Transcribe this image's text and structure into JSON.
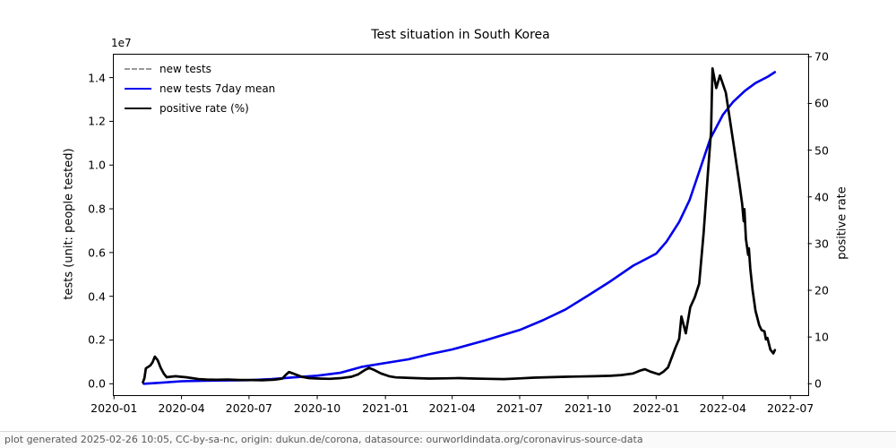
{
  "footer": {
    "text": "plot generated 2025-02-26 10:05, CC-by-sa-nc, origin: dukun.de/corona, datasource: ourworldindata.org/coronavirus-source-data"
  },
  "legend": {
    "items": [
      {
        "label": "new tests",
        "style": "dashed",
        "color": "#999999"
      },
      {
        "label": "new tests 7day mean",
        "style": "solid",
        "color": "#0000ee"
      },
      {
        "label": "positive rate (%)",
        "style": "solid",
        "color": "#000000"
      }
    ]
  },
  "chart_data": {
    "type": "line",
    "title": "Test situation in South Korea",
    "xlabel": "",
    "x_axis": {
      "tick_labels": [
        "2020-01",
        "2020-04",
        "2020-07",
        "2020-10",
        "2021-01",
        "2021-04",
        "2021-07",
        "2021-10",
        "2022-01",
        "2022-04",
        "2022-07"
      ],
      "lim": [
        "2019-12-30",
        "2022-07-25"
      ]
    },
    "left_axis": {
      "label": "tests (unit: people tested)",
      "offset_label": "1e7",
      "tick_labels": [
        "0.0",
        "0.2",
        "0.4",
        "0.6",
        "0.8",
        "1.0",
        "1.2",
        "1.4"
      ],
      "tick_values": [
        0,
        2000000,
        4000000,
        6000000,
        8000000,
        10000000,
        12000000,
        14000000
      ],
      "lim": [
        -520000,
        15090000
      ]
    },
    "right_axis": {
      "label": "positive rate",
      "tick_labels": [
        "0",
        "10",
        "20",
        "30",
        "40",
        "50",
        "60",
        "70"
      ],
      "tick_values": [
        0,
        10,
        20,
        30,
        40,
        50,
        60,
        70
      ],
      "lim": [
        -2.44,
        70.64
      ]
    },
    "series": [
      {
        "name": "new tests",
        "axis": "left",
        "color": "#999999",
        "dashed": true,
        "width": 2.2,
        "same_as": "new tests 7day mean"
      },
      {
        "name": "new tests 7day mean",
        "axis": "left",
        "color": "#0000ee",
        "dashed": false,
        "width": 2.6,
        "points": [
          [
            "2020-02-10",
            0
          ],
          [
            "2020-03-01",
            40000
          ],
          [
            "2020-04-01",
            115000
          ],
          [
            "2020-05-01",
            135000
          ],
          [
            "2020-06-01",
            150000
          ],
          [
            "2020-07-01",
            165000
          ],
          [
            "2020-08-01",
            215000
          ],
          [
            "2020-09-01",
            295000
          ],
          [
            "2020-10-01",
            370000
          ],
          [
            "2020-11-01",
            500000
          ],
          [
            "2020-12-01",
            780000
          ],
          [
            "2021-01-01",
            950000
          ],
          [
            "2021-02-01",
            1120000
          ],
          [
            "2021-03-01",
            1350000
          ],
          [
            "2021-04-01",
            1570000
          ],
          [
            "2021-05-15",
            1980000
          ],
          [
            "2021-07-01",
            2460000
          ],
          [
            "2021-08-01",
            2900000
          ],
          [
            "2021-09-01",
            3400000
          ],
          [
            "2021-10-01",
            4030000
          ],
          [
            "2021-11-01",
            4700000
          ],
          [
            "2021-12-01",
            5400000
          ],
          [
            "2022-01-01",
            5950000
          ],
          [
            "2022-01-15",
            6500000
          ],
          [
            "2022-02-01",
            7400000
          ],
          [
            "2022-02-15",
            8400000
          ],
          [
            "2022-03-01",
            9800000
          ],
          [
            "2022-03-15",
            11200000
          ],
          [
            "2022-04-01",
            12300000
          ],
          [
            "2022-04-15",
            12900000
          ],
          [
            "2022-05-01",
            13400000
          ],
          [
            "2022-05-15",
            13750000
          ],
          [
            "2022-06-01",
            14050000
          ],
          [
            "2022-06-10",
            14250000
          ]
        ]
      },
      {
        "name": "positive rate (%)",
        "axis": "right",
        "color": "#000000",
        "dashed": false,
        "width": 2.7,
        "points": [
          [
            "2020-02-09",
            0.3
          ],
          [
            "2020-02-11",
            1.2
          ],
          [
            "2020-02-13",
            3.3
          ],
          [
            "2020-02-16",
            3.6
          ],
          [
            "2020-02-19",
            3.9
          ],
          [
            "2020-02-22",
            4.6
          ],
          [
            "2020-02-25",
            5.8
          ],
          [
            "2020-02-29",
            5.0
          ],
          [
            "2020-03-04",
            3.4
          ],
          [
            "2020-03-08",
            2.2
          ],
          [
            "2020-03-12",
            1.4
          ],
          [
            "2020-03-17",
            1.5
          ],
          [
            "2020-03-24",
            1.6
          ],
          [
            "2020-03-31",
            1.5
          ],
          [
            "2020-04-07",
            1.4
          ],
          [
            "2020-04-15",
            1.2
          ],
          [
            "2020-04-24",
            1.0
          ],
          [
            "2020-05-05",
            0.9
          ],
          [
            "2020-05-18",
            0.85
          ],
          [
            "2020-06-03",
            0.9
          ],
          [
            "2020-06-18",
            0.8
          ],
          [
            "2020-07-03",
            0.8
          ],
          [
            "2020-07-19",
            0.75
          ],
          [
            "2020-08-04",
            0.85
          ],
          [
            "2020-08-15",
            1.1
          ],
          [
            "2020-08-19",
            1.8
          ],
          [
            "2020-08-24",
            2.5
          ],
          [
            "2020-09-01",
            2.05
          ],
          [
            "2020-09-10",
            1.5
          ],
          [
            "2020-09-20",
            1.2
          ],
          [
            "2020-10-03",
            1.1
          ],
          [
            "2020-10-18",
            1.05
          ],
          [
            "2020-11-02",
            1.2
          ],
          [
            "2020-11-16",
            1.5
          ],
          [
            "2020-11-25",
            2.0
          ],
          [
            "2020-12-05",
            3.0
          ],
          [
            "2020-12-10",
            3.4
          ],
          [
            "2020-12-16",
            3.0
          ],
          [
            "2020-12-26",
            2.2
          ],
          [
            "2021-01-06",
            1.6
          ],
          [
            "2021-01-15",
            1.35
          ],
          [
            "2021-01-25",
            1.3
          ],
          [
            "2021-02-10",
            1.2
          ],
          [
            "2021-03-01",
            1.1
          ],
          [
            "2021-03-20",
            1.15
          ],
          [
            "2021-04-10",
            1.2
          ],
          [
            "2021-05-01",
            1.1
          ],
          [
            "2021-05-20",
            1.05
          ],
          [
            "2021-06-10",
            1.0
          ],
          [
            "2021-07-01",
            1.15
          ],
          [
            "2021-07-20",
            1.3
          ],
          [
            "2021-08-10",
            1.4
          ],
          [
            "2021-09-01",
            1.5
          ],
          [
            "2021-09-20",
            1.55
          ],
          [
            "2021-10-10",
            1.6
          ],
          [
            "2021-11-01",
            1.7
          ],
          [
            "2021-11-15",
            1.85
          ],
          [
            "2021-12-01",
            2.2
          ],
          [
            "2021-12-10",
            2.8
          ],
          [
            "2021-12-17",
            3.1
          ],
          [
            "2021-12-24",
            2.6
          ],
          [
            "2022-01-05",
            2.0
          ],
          [
            "2022-01-11",
            2.6
          ],
          [
            "2022-01-17",
            3.5
          ],
          [
            "2022-01-27",
            7.7
          ],
          [
            "2022-02-01",
            9.6
          ],
          [
            "2022-02-04",
            14.4
          ],
          [
            "2022-02-10",
            10.8
          ],
          [
            "2022-02-16",
            16.4
          ],
          [
            "2022-02-22",
            18.5
          ],
          [
            "2022-02-28",
            21.4
          ],
          [
            "2022-03-06",
            32.3
          ],
          [
            "2022-03-12",
            45.7
          ],
          [
            "2022-03-16",
            54.0
          ],
          [
            "2022-03-17",
            61.0
          ],
          [
            "2022-03-18",
            67.5
          ],
          [
            "2022-03-23",
            63.3
          ],
          [
            "2022-03-28",
            66.0
          ],
          [
            "2022-04-05",
            62.3
          ],
          [
            "2022-04-11",
            55.9
          ],
          [
            "2022-04-17",
            49.5
          ],
          [
            "2022-04-23",
            43.1
          ],
          [
            "2022-04-27",
            38.5
          ],
          [
            "2022-04-29",
            34.8
          ],
          [
            "2022-04-30",
            37.4
          ],
          [
            "2022-05-02",
            31.0
          ],
          [
            "2022-05-05",
            27.6
          ],
          [
            "2022-05-06",
            29.0
          ],
          [
            "2022-05-08",
            24.6
          ],
          [
            "2022-05-11",
            20.1
          ],
          [
            "2022-05-15",
            15.6
          ],
          [
            "2022-05-20",
            12.5
          ],
          [
            "2022-05-23",
            11.5
          ],
          [
            "2022-05-27",
            11.2
          ],
          [
            "2022-05-29",
            9.5
          ],
          [
            "2022-05-31",
            9.8
          ],
          [
            "2022-06-04",
            7.3
          ],
          [
            "2022-06-08",
            6.5
          ],
          [
            "2022-06-10",
            7.2
          ]
        ]
      }
    ]
  }
}
